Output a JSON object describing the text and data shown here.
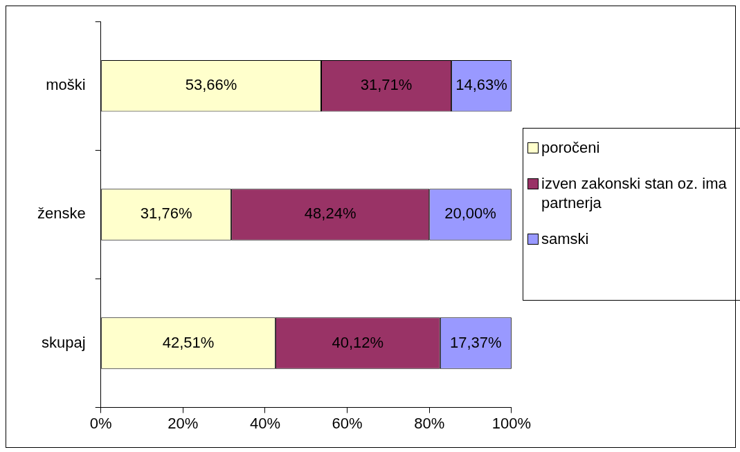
{
  "chart_data": {
    "type": "bar",
    "orientation": "horizontal",
    "stacked": true,
    "categories": [
      "moški",
      "ženske",
      "skupaj"
    ],
    "series": [
      {
        "name": "poročeni",
        "color": "#ffffcc",
        "values": [
          53.66,
          31.76,
          42.51
        ],
        "value_labels": [
          "53,66%",
          "31,76%",
          "42,51%"
        ]
      },
      {
        "name": "izven zakonski stan oz. ima partnerja",
        "color": "#993366",
        "values": [
          31.71,
          48.24,
          40.12
        ],
        "value_labels": [
          "31,71%",
          "48,24%",
          "40,12%"
        ]
      },
      {
        "name": "samski",
        "color": "#9999ff",
        "values": [
          14.63,
          20.0,
          17.37
        ],
        "value_labels": [
          "14,63%",
          "20,00%",
          "17,37%"
        ]
      }
    ],
    "xlim": [
      0,
      100
    ],
    "xticks": [
      {
        "value": 0,
        "label": "0%"
      },
      {
        "value": 20,
        "label": "20%"
      },
      {
        "value": 40,
        "label": "40%"
      },
      {
        "value": 60,
        "label": "60%"
      },
      {
        "value": 80,
        "label": "80%"
      },
      {
        "value": 100,
        "label": "100%"
      }
    ],
    "legend": "right"
  }
}
